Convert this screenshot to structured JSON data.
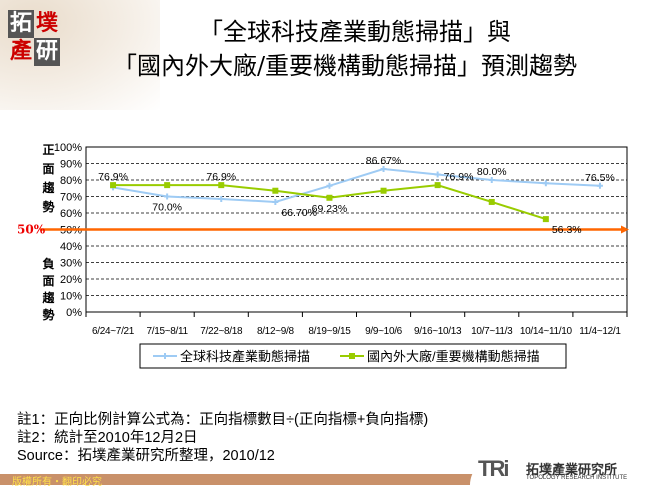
{
  "logo": {
    "chars": [
      "拓",
      "墣",
      "產",
      "研"
    ]
  },
  "title": {
    "line1": "「全球科技產業動態掃描」與",
    "line2": "「國內外大廠/重要機構動態掃描」預測趨勢"
  },
  "side_labels": {
    "positive": "正面趨勢",
    "negative": "負面趨勢",
    "threshold": "50%"
  },
  "chart_data": {
    "type": "line",
    "categories": [
      "6/24~7/21",
      "7/15~8/11",
      "7/22~8/18",
      "8/12~9/8",
      "8/19~9/15",
      "9/9~10/6",
      "9/16~10/13",
      "10/7~11/3",
      "10/14~11/10",
      "11/4~12/1"
    ],
    "yticks": [
      "0%",
      "10%",
      "20%",
      "30%",
      "40%",
      "50%",
      "60%",
      "70%",
      "80%",
      "90%",
      "100%"
    ],
    "ylim": [
      0,
      100
    ],
    "grid": true,
    "legend": "bottom",
    "reference_line": 50,
    "series": [
      {
        "name": "全球科技產業動態掃描",
        "color": "#9ecbf4",
        "values": [
          75.5,
          70.0,
          68.5,
          66.7,
          76.5,
          86.67,
          83.3,
          80.0,
          78.0,
          76.5
        ],
        "labels": [
          "",
          "70.0%",
          "",
          "66.70%",
          "",
          "86.67%",
          "",
          "80.0%",
          "",
          "76.5%"
        ]
      },
      {
        "name": "國內外大廠/重要機構動態掃描",
        "color": "#99cc00",
        "values": [
          76.9,
          76.9,
          76.9,
          73.5,
          69.23,
          73.5,
          76.9,
          66.7,
          56.3,
          null
        ],
        "labels": [
          "76.9%",
          "",
          "76.9%",
          "",
          "69.23%",
          "",
          "76.9%",
          "",
          "56.3%",
          ""
        ]
      }
    ]
  },
  "notes": {
    "note1": "註1：正向比例計算公式為：正向指標數目÷(正向指標+負向指標)",
    "note2": "註2：統計至2010年12月2日",
    "source": "Source：拓墣產業研究所整理，2010/12"
  },
  "footer": {
    "copyright": "版權所有・翻印必究",
    "brand": "TRi",
    "brand_cn": "拓墣產業研究所",
    "brand_en": "TOPOLOGY RESEARCH INSTITUTE"
  }
}
